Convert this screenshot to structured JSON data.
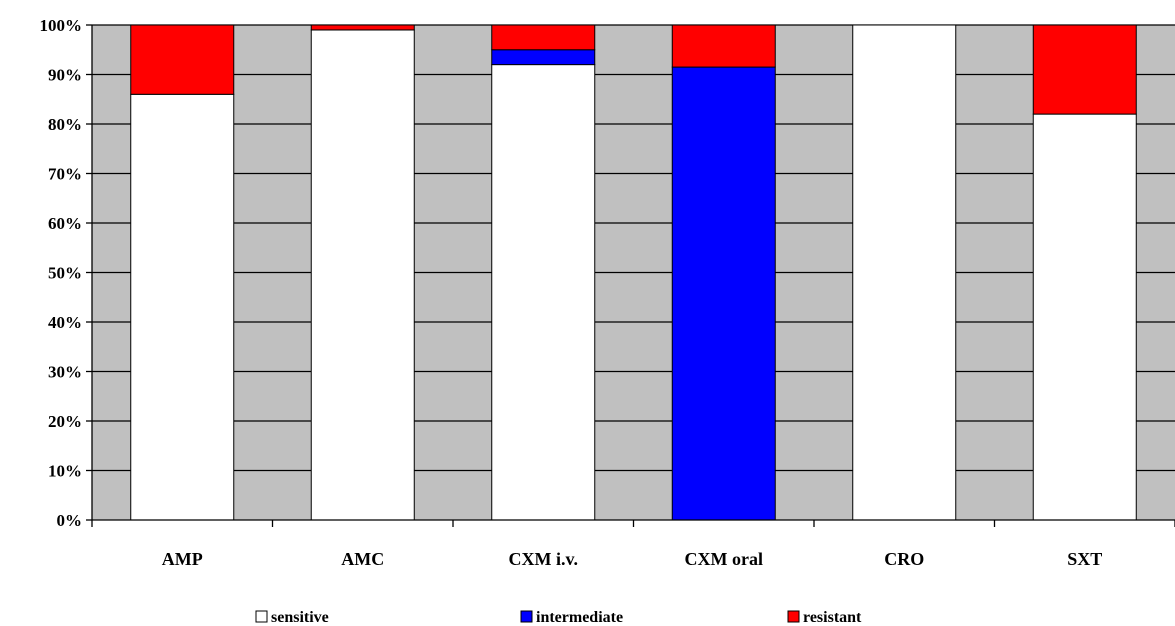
{
  "chart_data": {
    "type": "bar",
    "stacked": true,
    "percent": true,
    "title": "",
    "xlabel": "",
    "ylabel": "",
    "ylim": [
      0,
      100
    ],
    "yticks": [
      0,
      10,
      20,
      30,
      40,
      50,
      60,
      70,
      80,
      90,
      100
    ],
    "ytick_labels": [
      "0%",
      "10%",
      "20%",
      "30%",
      "40%",
      "50%",
      "60%",
      "70%",
      "80%",
      "90%",
      "100%"
    ],
    "grid": true,
    "legend_position": "bottom",
    "categories": [
      "AMP",
      "AMC",
      "CXM i.v.",
      "CXM oral",
      "CRO",
      "SXT"
    ],
    "series": [
      {
        "name": "sensitive",
        "color": "#ffffff",
        "values": [
          86,
          99,
          92,
          0,
          100,
          82
        ]
      },
      {
        "name": "intermediate",
        "color": "#0000ff",
        "values": [
          0,
          0,
          3,
          91.5,
          0,
          0
        ]
      },
      {
        "name": "resistant",
        "color": "#ff0000",
        "values": [
          14,
          1,
          5,
          8.5,
          0,
          18
        ]
      }
    ],
    "plot_background": "#c0c0c0"
  }
}
